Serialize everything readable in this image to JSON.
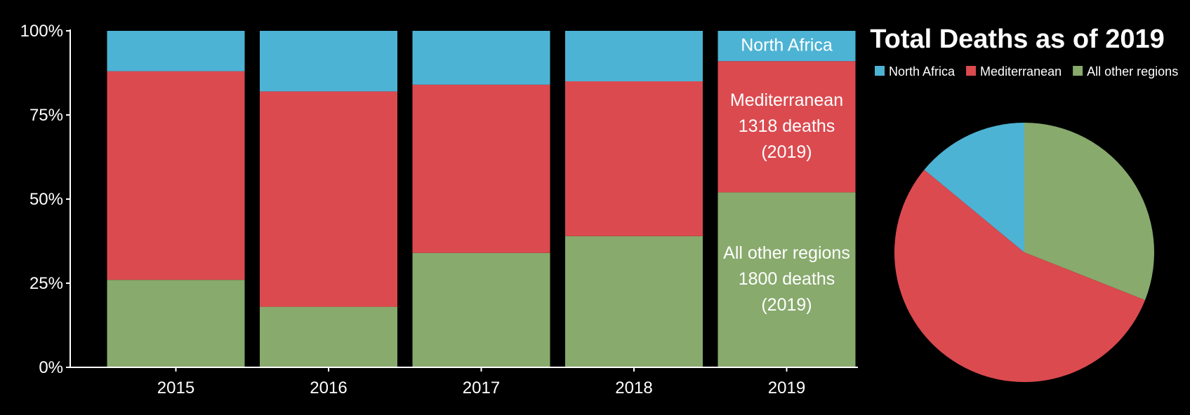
{
  "colors": {
    "background": "#000000",
    "north_africa": "#4db3d4",
    "mediterranean": "#db4a4f",
    "all_other_regions": "#88aa6d",
    "axis": "#ffffff",
    "text": "#ffffff"
  },
  "chart_data": [
    {
      "type": "bar",
      "stacked": "percent",
      "title": "",
      "xlabel": "",
      "ylabel": "",
      "categories": [
        "2015",
        "2016",
        "2017",
        "2018",
        "2019"
      ],
      "ylim": [
        0,
        100
      ],
      "yticks": [
        "0%",
        "25%",
        "50%",
        "75%",
        "100%"
      ],
      "series": [
        {
          "name": "All other regions",
          "color_key": "all_other_regions",
          "values": [
            26,
            18,
            34,
            39,
            52
          ]
        },
        {
          "name": "Mediterranean",
          "color_key": "mediterranean",
          "values": [
            62,
            64,
            50,
            46,
            39
          ]
        },
        {
          "name": "North Africa",
          "color_key": "north_africa",
          "values": [
            12,
            18,
            16,
            15,
            9
          ]
        }
      ],
      "annotations": [
        {
          "category": "2019",
          "series": "North Africa",
          "lines": [
            "North Africa"
          ]
        },
        {
          "category": "2019",
          "series": "Mediterranean",
          "lines": [
            "Mediterranean",
            "1318 deaths",
            "(2019)"
          ]
        },
        {
          "category": "2019",
          "series": "All other regions",
          "lines": [
            "All other regions",
            "1800 deaths",
            "(2019)"
          ]
        }
      ],
      "grid": false,
      "legend": "none"
    },
    {
      "type": "pie",
      "title": "Total Deaths as of 2019",
      "legend": "top",
      "start_angle": "top",
      "direction": "clockwise",
      "slices": [
        {
          "name": "All other regions",
          "color_key": "all_other_regions",
          "value": 31
        },
        {
          "name": "Mediterranean",
          "color_key": "mediterranean",
          "value": 55
        },
        {
          "name": "North Africa",
          "color_key": "north_africa",
          "value": 14
        }
      ],
      "legend_order": [
        "North Africa",
        "Mediterranean",
        "All other regions"
      ]
    }
  ]
}
